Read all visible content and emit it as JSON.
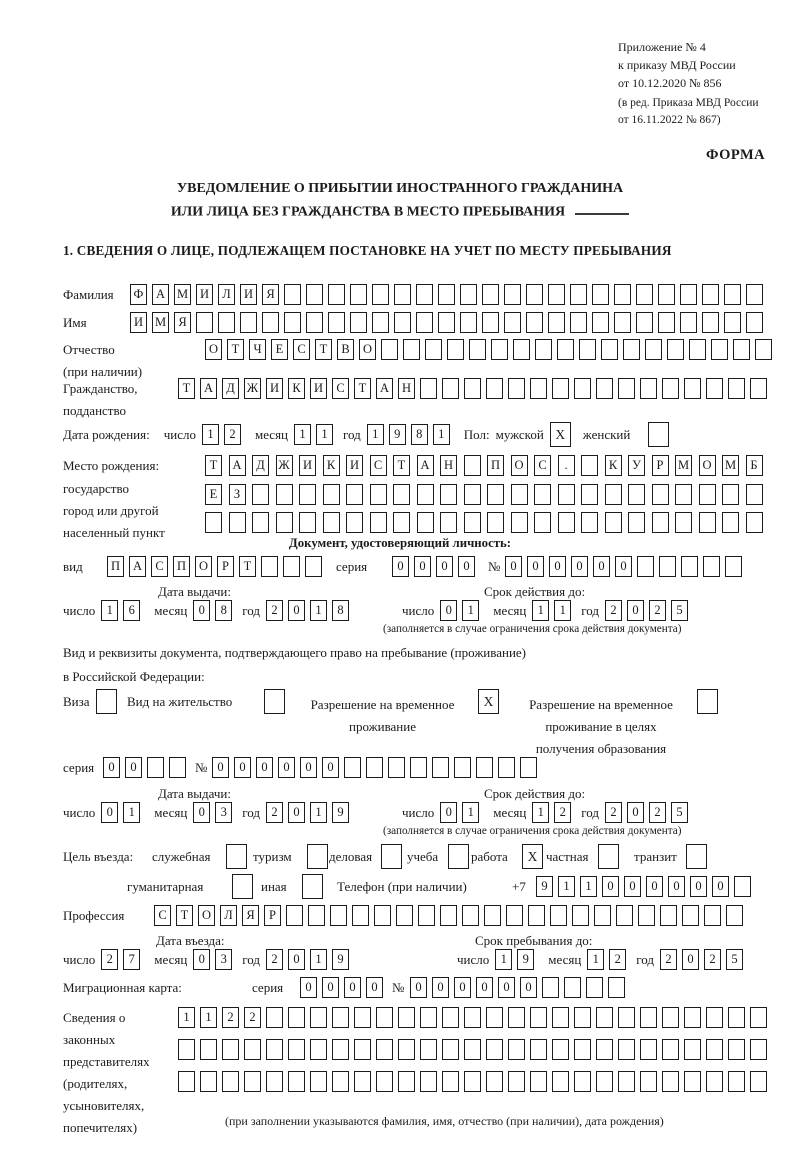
{
  "header": {
    "annex": [
      "Приложение № 4",
      "к приказу МВД России",
      "от 10.12.2020 № 856"
    ],
    "edition": [
      "(в ред. Приказа МВД России",
      "от 16.11.2022 № 867)"
    ],
    "forma": "ФОРМА"
  },
  "title": {
    "line1": "УВЕДОМЛЕНИЕ О ПРИБЫТИИ ИНОСТРАННОГО ГРАЖДАНИНА",
    "line2": "ИЛИ ЛИЦА БЕЗ ГРАЖДАНСТВА В МЕСТО ПРЕБЫВАНИЯ"
  },
  "section1": {
    "heading": "1. СВЕДЕНИЯ О ЛИЦЕ, ПОДЛЕЖАЩЕМ ПОСТАНОВКЕ НА УЧЕТ ПО МЕСТУ ПРЕБЫВАНИЯ"
  },
  "date_labels": {
    "day": "число",
    "month": "месяц",
    "year": "год"
  },
  "fields": {
    "surname": {
      "label": "Фамилия",
      "cells": {
        "value": "ФАМИЛИЯ",
        "len": 29
      }
    },
    "name": {
      "label": "Имя",
      "cells": {
        "value": "ИМЯ",
        "len": 29
      }
    },
    "patronymic": {
      "label": "Отчество",
      "sublabel": "(при наличии)",
      "cells": {
        "value": "ОТЧЕСТВО",
        "len": 26
      }
    },
    "citizenship": {
      "label": "Гражданство,",
      "sublabel": "подданство",
      "cells": {
        "value": "ТАДЖИКИСТАН",
        "len": 27
      }
    },
    "birth_date": {
      "label": "Дата рождения:",
      "day": {
        "value": "12",
        "len": 2
      },
      "month": {
        "value": "11",
        "len": 2
      },
      "year": {
        "value": "1981",
        "len": 4
      },
      "sex_label": "Пол:",
      "male_label": "мужской",
      "male_check": "X",
      "female_label": "женский",
      "female_check": ""
    },
    "birth_place": {
      "label": "Место рождения:",
      "sublabel1": "государство",
      "sublabel2": "город или другой",
      "sublabel3": "населенный пункт",
      "row1": {
        "value": "ТАДЖИКИСТАН ПОС. КУРМОМБ",
        "len": 24
      },
      "row2": {
        "value": "ЕЗ",
        "len": 24
      },
      "row3": {
        "value": "",
        "len": 24
      }
    },
    "identity_doc": {
      "heading": "Документ, удостоверяющий личность:",
      "type_label": "вид",
      "type": {
        "value": "ПАСПОРТ",
        "len": 10
      },
      "series_label": "серия",
      "series": {
        "value": "0000",
        "len": 4
      },
      "number_label": "№",
      "number": {
        "value": "000000",
        "len": 11
      }
    },
    "issue1": {
      "title": "Дата выдачи:",
      "day": {
        "value": "16",
        "len": 2
      },
      "month": {
        "value": "08",
        "len": 2
      },
      "year": {
        "value": "2018",
        "len": 4
      }
    },
    "valid1": {
      "title": "Срок действия до:",
      "day": {
        "value": "01",
        "len": 2
      },
      "month": {
        "value": "11",
        "len": 2
      },
      "year": {
        "value": "2025",
        "len": 4
      },
      "note": "(заполняется в случае ограничения срока действия документа)"
    },
    "residence_doc": {
      "line1": "Вид и реквизиты документа, подтверждающего право на пребывание (проживание)",
      "line2": "в Российской Федерации:",
      "visa_label": "Виза",
      "visa_check": "",
      "vnzh_label": "Вид на жительство",
      "vnzh_check": "",
      "rvp_label1": "Разрешение на временное",
      "rvp_label2": "проживание",
      "rvp_check": "X",
      "rvp_edu_label1": "Разрешение на временное",
      "rvp_edu_label2": "проживание в целях",
      "rvp_edu_label3": "получения образования",
      "rvp_edu_check": "",
      "series_label": "серия",
      "series": {
        "value": "00",
        "len": 4
      },
      "number_label": "№",
      "number": {
        "value": "000000",
        "len": 15
      }
    },
    "issue2": {
      "title": "Дата выдачи:",
      "day": {
        "value": "01",
        "len": 2
      },
      "month": {
        "value": "03",
        "len": 2
      },
      "year": {
        "value": "2019",
        "len": 4
      }
    },
    "valid2": {
      "title": "Срок действия до:",
      "day": {
        "value": "01",
        "len": 2
      },
      "month": {
        "value": "12",
        "len": 2
      },
      "year": {
        "value": "2025",
        "len": 4
      },
      "note": "(заполняется в случае ограничения срока действия документа)"
    },
    "purpose": {
      "label": "Цель въезда:",
      "options": [
        {
          "label": "служебная",
          "check": ""
        },
        {
          "label": "туризм",
          "check": ""
        },
        {
          "label": "деловая",
          "check": ""
        },
        {
          "label": "учеба",
          "check": ""
        },
        {
          "label": "работа",
          "check": "X"
        },
        {
          "label": "частная",
          "check": ""
        },
        {
          "label": "транзит",
          "check": ""
        },
        {
          "label": "гуманитарная",
          "check": ""
        },
        {
          "label": "иная",
          "check": ""
        }
      ],
      "phone_label": "Телефон (при наличии)",
      "phone_prefix": "+7",
      "phone": {
        "value": "911000000",
        "len": 10
      }
    },
    "profession": {
      "label": "Профессия",
      "cells": {
        "value": "СТОЛЯР",
        "len": 27
      }
    },
    "entry_date": {
      "title": "Дата въезда:",
      "day": {
        "value": "27",
        "len": 2
      },
      "month": {
        "value": "03",
        "len": 2
      },
      "year": {
        "value": "2019",
        "len": 4
      }
    },
    "stay_until": {
      "title": "Срок пребывания до:",
      "day": {
        "value": "19",
        "len": 2
      },
      "month": {
        "value": "12",
        "len": 2
      },
      "year": {
        "value": "2025",
        "len": 4
      }
    },
    "migration_card": {
      "label": "Миграционная карта:",
      "series_label": "серия",
      "series": {
        "value": "0000",
        "len": 4
      },
      "number_label": "№",
      "number": {
        "value": "000000",
        "len": 10
      }
    },
    "guardians": {
      "label1": "Сведения о",
      "label2": "законных",
      "label3": "представителях",
      "label4": "(родителях,",
      "label5": "усыновителях,",
      "label6": "попечителях)",
      "row1": {
        "value": "1122",
        "len": 27
      },
      "row2": {
        "value": "",
        "len": 27
      },
      "row3": {
        "value": "",
        "len": 27
      },
      "note": "(при заполнении указываются фамилия, имя, отчество (при наличии), дата рождения)"
    }
  }
}
